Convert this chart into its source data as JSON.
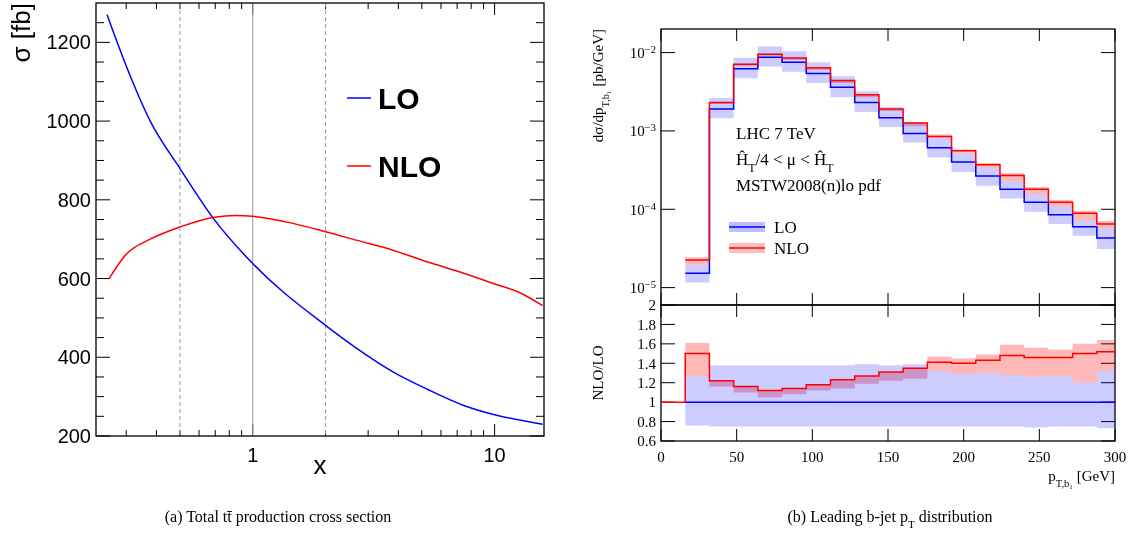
{
  "chart_data": [
    {
      "type": "line",
      "xlabel": "x",
      "ylabel": "σ [fb]",
      "log": "x",
      "xlim": [
        0.225,
        16
      ],
      "ylim": [
        200,
        1300
      ],
      "xticks": [
        {
          "value": 0.3,
          "label": null
        },
        {
          "value": 0.4,
          "label": null
        },
        {
          "value": 0.5,
          "label": null
        },
        {
          "value": 0.6,
          "label": null
        },
        {
          "value": 0.7,
          "label": null
        },
        {
          "value": 0.8,
          "label": null
        },
        {
          "value": 0.9,
          "label": null
        },
        1,
        {
          "value": 2,
          "label": null
        },
        {
          "value": 3,
          "label": null
        },
        {
          "value": 4,
          "label": null
        },
        {
          "value": 5,
          "label": null
        },
        {
          "value": 6,
          "label": null
        },
        {
          "value": 7,
          "label": null
        },
        {
          "value": 8,
          "label": null
        },
        {
          "value": 9,
          "label": null
        },
        10
      ],
      "yticks": [
        200,
        {
          "value": 250,
          "label": null
        },
        {
          "value": 300,
          "label": null
        },
        {
          "value": 350,
          "label": null
        },
        400,
        {
          "value": 450,
          "label": null
        },
        {
          "value": 500,
          "label": null
        },
        {
          "value": 550,
          "label": null
        },
        600,
        {
          "value": 650,
          "label": null
        },
        {
          "value": 700,
          "label": null
        },
        {
          "value": 750,
          "label": null
        },
        800,
        {
          "value": 850,
          "label": null
        },
        {
          "value": 900,
          "label": null
        },
        {
          "value": 950,
          "label": null
        },
        1000,
        {
          "value": 1050,
          "label": null
        },
        {
          "value": 1100,
          "label": null
        },
        {
          "value": 1150,
          "label": null
        },
        1200,
        {
          "value": 1250,
          "label": null
        }
      ],
      "legend": "top right",
      "series": [
        {
          "name": "LO",
          "color": "#0000ff",
          "x": [
            0.25,
            0.3,
            0.377,
            0.5,
            0.695,
            1,
            2,
            2.7,
            3.8,
            5.3,
            7.5,
            10,
            15.8
          ],
          "values": [
            1270,
            1140,
            1000,
            880,
            749,
            638,
            481,
            422,
            363,
            318,
            277,
            254,
            230
          ]
        },
        {
          "name": "NLO",
          "color": "#ff0000",
          "x": [
            0.255,
            0.3,
            0.377,
            0.5,
            0.695,
            0.853,
            1,
            1.37,
            2,
            2.7,
            3.8,
            5.3,
            7.5,
            10,
            12.4,
            15.8
          ],
          "values": [
            600,
            662,
            700,
            731,
            756,
            760,
            758,
            744,
            719,
            697,
            672,
            642,
            613,
            586,
            567,
            531
          ]
        }
      ],
      "ref_lines": [
        {
          "axis": "x",
          "value": 0.5,
          "color": "#999999",
          "line_style": "dashed"
        },
        {
          "axis": "x",
          "value": 1,
          "color": "#999999",
          "line_style": "solid"
        },
        {
          "axis": "x",
          "value": 2,
          "color": "#999999",
          "line_style": "dashed"
        }
      ],
      "annotations": [
        "(a) Total tt̄ production cross section"
      ]
    },
    {
      "type": "step",
      "ylabel": "dσ/dp$_{T,b₁}$ [pb/GeV]",
      "log": "y",
      "xlim": [
        0,
        300
      ],
      "ylim": [
        6e-06,
        0.02
      ],
      "tick_labels": "y",
      "xticks": [
        0,
        50,
        100,
        150,
        200,
        250,
        300
      ],
      "yticks": [
        {
          "value": 1e-05,
          "label": "10$^{−5}$"
        },
        {
          "value": 0.0001,
          "label": "10$^{−4}$"
        },
        {
          "value": 0.001,
          "label": "10$^{−3}$"
        },
        {
          "value": 0.01,
          "label": "10$^{−2}$"
        }
      ],
      "x": [
        16,
        32,
        48,
        64,
        80,
        96,
        112,
        128,
        144,
        160,
        176,
        192,
        208,
        224,
        240,
        256,
        272,
        288,
        300
      ],
      "legend": "left",
      "series": [
        {
          "name": "LO",
          "color": "#0000ff",
          "values": [
            1.52e-05,
            0.00191,
            0.0062,
            0.0087,
            0.0075,
            0.0054,
            0.0036,
            0.0023,
            0.00147,
            0.00093,
            0.00061,
            0.0004,
            0.000265,
            0.00018,
            0.000123,
            8.5e-05,
            6e-05,
            4.3e-05,
            4.3e-05
          ],
          "lower": [
            1.16e-05,
            0.00145,
            0.0047,
            0.0066,
            0.0057,
            0.0041,
            0.0027,
            0.00175,
            0.00112,
            0.00071,
            0.00046,
            0.0003,
            0.0002,
            0.000137,
            9.3e-05,
            6.5e-05,
            4.6e-05,
            3.1e-05,
            3.1e-05
          ],
          "upper": [
            1.93e-05,
            0.00264,
            0.0086,
            0.012,
            0.0104,
            0.0075,
            0.005,
            0.0032,
            0.00203,
            0.00129,
            0.00081,
            0.00052,
            0.00034,
            0.00023,
            0.000155,
            0.000108,
            7.2e-05,
            5.7e-05,
            5.7e-05
          ]
        },
        {
          "name": "NLO",
          "color": "#ff0000",
          "values": [
            2.26e-05,
            0.00231,
            0.00708,
            0.0095,
            0.0085,
            0.0064,
            0.0044,
            0.0029,
            0.0019,
            0.00126,
            0.00085,
            0.00056,
            0.00037,
            0.00027,
            0.00018,
            0.000123,
            8.9e-05,
            6.5e-05,
            6.5e-05
          ],
          "lower": [
            1.93e-05,
            0.00221,
            0.0068,
            0.0091,
            0.0081,
            0.006,
            0.0041,
            0.0027,
            0.00179,
            0.00115,
            0.00081,
            0.00052,
            0.00034,
            0.00023,
            0.000155,
            0.000108,
            7.2e-05,
            5.7e-05,
            5.7e-05
          ],
          "upper": [
            2.45e-05,
            0.00233,
            0.0072,
            0.0097,
            0.0086,
            0.0064,
            0.0044,
            0.0029,
            0.00193,
            0.00126,
            0.0009,
            0.00058,
            0.00039,
            0.00029,
            0.000192,
            0.000131,
            9.6e-05,
            7.1e-05,
            7.1e-05
          ]
        }
      ],
      "annotations": [
        "LHC 7 TeV",
        "Ĥ$_{T}$/4 < μ < Ĥ$_{T}$",
        "MSTW2008(n)lo pdf"
      ]
    },
    {
      "type": "step",
      "xlabel": "p$_{T,b₁}$ [GeV]",
      "ylabel": "NLO/LO",
      "xlim": [
        0,
        300
      ],
      "ylim": [
        0.6,
        2
      ],
      "xticks": [
        0,
        50,
        100,
        150,
        200,
        250,
        300
      ],
      "yticks": [
        0.6,
        0.8,
        1,
        1.2,
        1.4,
        1.6,
        1.8,
        2
      ],
      "x": [
        0,
        16,
        32,
        48,
        64,
        80,
        96,
        112,
        128,
        144,
        160,
        176,
        192,
        208,
        224,
        240,
        256,
        272,
        288,
        300
      ],
      "series": [
        {
          "color": "#0000ff",
          "values": [
            null,
            1,
            1,
            1,
            1,
            1,
            1,
            1,
            1,
            1,
            1,
            1,
            1,
            1,
            1,
            1,
            1,
            1,
            1,
            1
          ],
          "lower": [
            null,
            0.76,
            0.75,
            0.75,
            0.75,
            0.75,
            0.75,
            0.75,
            0.75,
            0.75,
            0.75,
            0.75,
            0.75,
            0.75,
            0.75,
            0.74,
            0.75,
            0.75,
            0.73,
            0.73
          ],
          "upper": [
            null,
            1.27,
            1.38,
            1.38,
            1.38,
            1.38,
            1.38,
            1.38,
            1.39,
            1.38,
            1.39,
            1.32,
            1.29,
            1.3,
            1.28,
            1.26,
            1.27,
            1.2,
            1.32,
            1.32
          ]
        },
        {
          "color": "#ff0000",
          "values": [
            1,
            1.5,
            1.22,
            1.16,
            1.12,
            1.14,
            1.18,
            1.23,
            1.27,
            1.31,
            1.35,
            1.41,
            1.4,
            1.43,
            1.48,
            1.46,
            1.46,
            1.5,
            1.52,
            1.52
          ],
          "lower": [
            null,
            1.27,
            1.16,
            1.1,
            1.05,
            1.08,
            1.12,
            1.14,
            1.19,
            1.22,
            1.24,
            1.32,
            1.29,
            1.3,
            1.28,
            1.26,
            1.27,
            1.2,
            1.32,
            1.32
          ],
          "upper": [
            null,
            1.61,
            1.22,
            1.16,
            1.12,
            1.14,
            1.18,
            1.23,
            1.27,
            1.31,
            1.35,
            1.47,
            1.45,
            1.49,
            1.59,
            1.56,
            1.54,
            1.6,
            1.64,
            1.64
          ]
        }
      ],
      "annotations": [
        "(b) Leading b-jet p$_{T}$ distribution"
      ]
    }
  ]
}
